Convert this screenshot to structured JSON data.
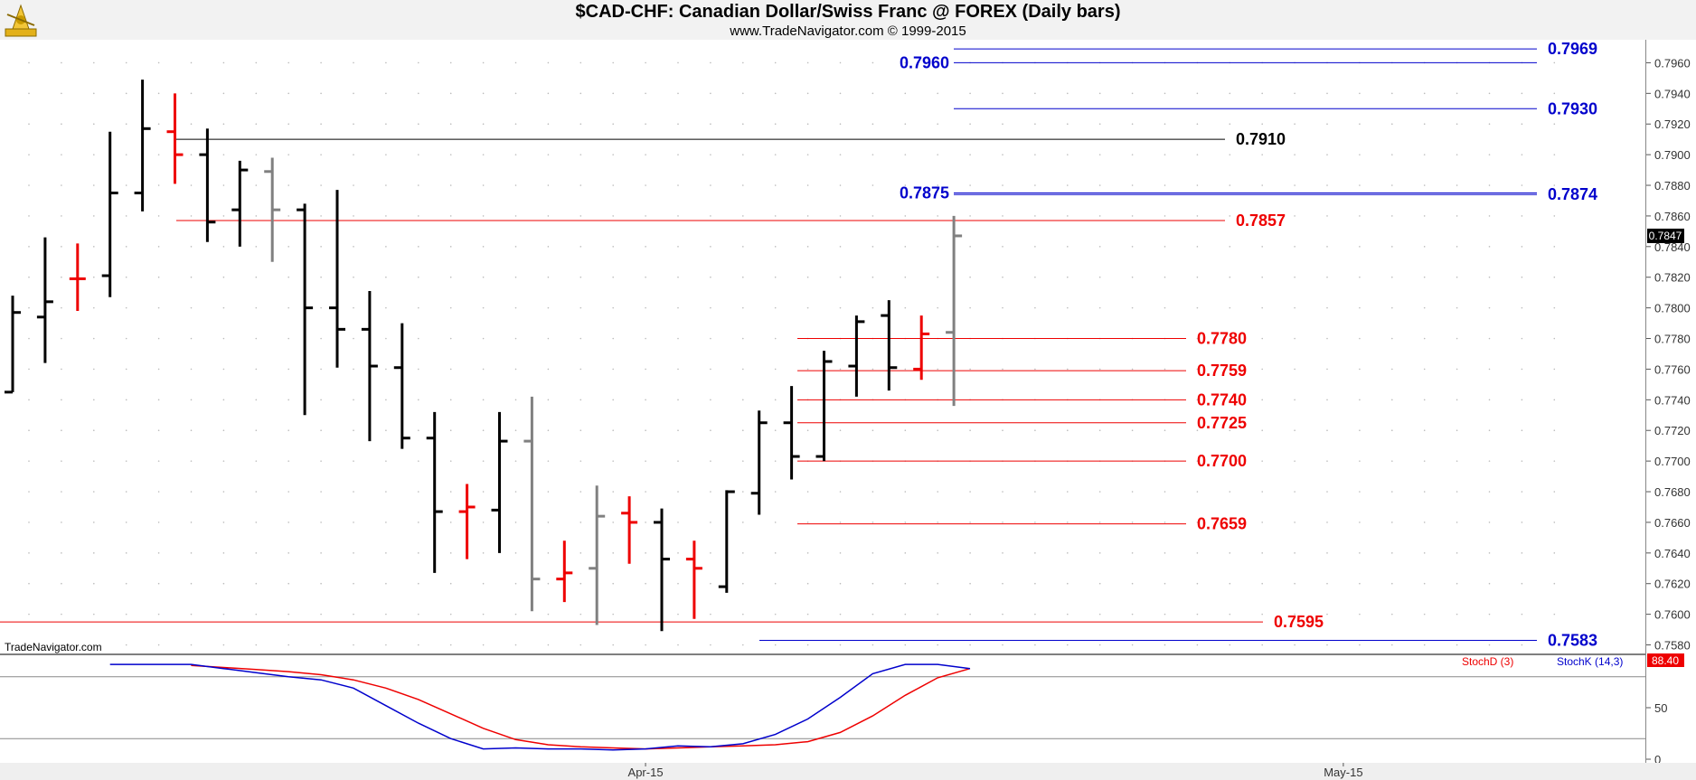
{
  "header": {
    "title": "$CAD-CHF:  Canadian Dollar/Swiss Franc @ FOREX  (Daily bars)",
    "subtitle": "www.TradeNavigator.com © 1999-2015",
    "watermark": "TradeNavigator.com"
  },
  "colors": {
    "black": "#000000",
    "red": "#ee0000",
    "gray": "#808080",
    "blue": "#0000cc",
    "stochD": "#ee0000",
    "stochK": "#0000cc"
  },
  "chart_data": [
    {
      "type": "ohlc",
      "title": "$CAD-CHF:  Canadian Dollar/Swiss Franc @ FOREX  (Daily bars)",
      "ylim": [
        0.7575,
        0.7975
      ],
      "y_ticks": [
        0.758,
        0.76,
        0.762,
        0.764,
        0.766,
        0.768,
        0.77,
        0.772,
        0.774,
        0.776,
        0.778,
        0.78,
        0.782,
        0.784,
        0.786,
        0.788,
        0.79,
        0.792,
        0.794,
        0.796
      ],
      "y_tick_labels": [
        "0.7580",
        "0.7600",
        "0.7620",
        "0.7640",
        "0.7660",
        "0.7680",
        "0.7700",
        "0.7720",
        "0.7740",
        "0.7760",
        "0.7780",
        "0.7800",
        "0.7820",
        "0.7840",
        "0.7860",
        "0.7880",
        "0.7900",
        "0.7920",
        "0.7940",
        "0.7960"
      ],
      "x_labels": [
        {
          "label": "Apr-15",
          "bar": 19.5
        },
        {
          "label": "May-15",
          "bar": 41
        }
      ],
      "grid": "dotted",
      "last_price": "0.7847",
      "bars": [
        {
          "o": 0.7745,
          "h": 0.7808,
          "l": 0.7745,
          "c": 0.7797,
          "color": "black"
        },
        {
          "o": 0.7794,
          "h": 0.7846,
          "l": 0.7764,
          "c": 0.7804,
          "color": "black"
        },
        {
          "o": 0.7819,
          "h": 0.7842,
          "l": 0.7798,
          "c": 0.7819,
          "color": "red"
        },
        {
          "o": 0.7821,
          "h": 0.7915,
          "l": 0.7807,
          "c": 0.7875,
          "color": "black"
        },
        {
          "o": 0.7875,
          "h": 0.7949,
          "l": 0.7863,
          "c": 0.7917,
          "color": "black"
        },
        {
          "o": 0.7915,
          "h": 0.794,
          "l": 0.7881,
          "c": 0.79,
          "color": "red"
        },
        {
          "o": 0.79,
          "h": 0.7917,
          "l": 0.7843,
          "c": 0.7856,
          "color": "black"
        },
        {
          "o": 0.7864,
          "h": 0.7896,
          "l": 0.784,
          "c": 0.789,
          "color": "black"
        },
        {
          "o": 0.7889,
          "h": 0.7898,
          "l": 0.783,
          "c": 0.7864,
          "color": "gray"
        },
        {
          "o": 0.7864,
          "h": 0.7868,
          "l": 0.773,
          "c": 0.78,
          "color": "black"
        },
        {
          "o": 0.78,
          "h": 0.7877,
          "l": 0.7761,
          "c": 0.7786,
          "color": "black"
        },
        {
          "o": 0.7786,
          "h": 0.7811,
          "l": 0.7713,
          "c": 0.7762,
          "color": "black"
        },
        {
          "o": 0.7761,
          "h": 0.779,
          "l": 0.7708,
          "c": 0.7715,
          "color": "black"
        },
        {
          "o": 0.7715,
          "h": 0.7732,
          "l": 0.7627,
          "c": 0.7667,
          "color": "black"
        },
        {
          "o": 0.7667,
          "h": 0.7685,
          "l": 0.7636,
          "c": 0.767,
          "color": "red"
        },
        {
          "o": 0.7668,
          "h": 0.7732,
          "l": 0.764,
          "c": 0.7713,
          "color": "black"
        },
        {
          "o": 0.7713,
          "h": 0.7742,
          "l": 0.7602,
          "c": 0.7623,
          "color": "gray"
        },
        {
          "o": 0.7623,
          "h": 0.7648,
          "l": 0.7608,
          "c": 0.7627,
          "color": "red"
        },
        {
          "o": 0.763,
          "h": 0.7684,
          "l": 0.7593,
          "c": 0.7664,
          "color": "gray"
        },
        {
          "o": 0.7666,
          "h": 0.7677,
          "l": 0.7633,
          "c": 0.766,
          "color": "red"
        },
        {
          "o": 0.766,
          "h": 0.7669,
          "l": 0.7589,
          "c": 0.7636,
          "color": "black"
        },
        {
          "o": 0.7636,
          "h": 0.7648,
          "l": 0.7597,
          "c": 0.763,
          "color": "red"
        },
        {
          "o": 0.7618,
          "h": 0.7681,
          "l": 0.7614,
          "c": 0.768,
          "color": "black"
        },
        {
          "o": 0.7679,
          "h": 0.7733,
          "l": 0.7665,
          "c": 0.7725,
          "color": "black"
        },
        {
          "o": 0.7725,
          "h": 0.7749,
          "l": 0.7688,
          "c": 0.7703,
          "color": "black"
        },
        {
          "o": 0.7703,
          "h": 0.7772,
          "l": 0.77,
          "c": 0.7765,
          "color": "black"
        },
        {
          "o": 0.7762,
          "h": 0.7795,
          "l": 0.7742,
          "c": 0.7791,
          "color": "black"
        },
        {
          "o": 0.7795,
          "h": 0.7805,
          "l": 0.7746,
          "c": 0.7761,
          "color": "black"
        },
        {
          "o": 0.776,
          "h": 0.7795,
          "l": 0.7753,
          "c": 0.7783,
          "color": "red"
        },
        {
          "o": 0.7784,
          "h": 0.786,
          "l": 0.7736,
          "c": 0.7847,
          "color": "gray"
        }
      ],
      "levels": [
        {
          "value": 0.7969,
          "label": "0.7969",
          "color": "blue"
        },
        {
          "value": 0.796,
          "label": "0.7960",
          "color": "blue"
        },
        {
          "value": 0.793,
          "label": "0.7930",
          "color": "blue"
        },
        {
          "value": 0.791,
          "label": "0.7910",
          "color": "black"
        },
        {
          "value": 0.7875,
          "label": "0.7875",
          "color": "blue"
        },
        {
          "value": 0.7874,
          "label": "0.7874",
          "color": "blue"
        },
        {
          "value": 0.7857,
          "label": "0.7857",
          "color": "red"
        },
        {
          "value": 0.778,
          "label": "0.7780",
          "color": "red"
        },
        {
          "value": 0.7759,
          "label": "0.7759",
          "color": "red"
        },
        {
          "value": 0.774,
          "label": "0.7740",
          "color": "red"
        },
        {
          "value": 0.7725,
          "label": "0.7725",
          "color": "red"
        },
        {
          "value": 0.77,
          "label": "0.7700",
          "color": "red"
        },
        {
          "value": 0.7659,
          "label": "0.7659",
          "color": "red"
        },
        {
          "value": 0.7595,
          "label": "0.7595",
          "color": "red"
        },
        {
          "value": 0.7583,
          "label": "0.7583",
          "color": "blue"
        }
      ]
    },
    {
      "type": "line",
      "ylim": [
        0,
        100
      ],
      "y_ticks": [
        0,
        50
      ],
      "y_tick_labels": [
        "0",
        "50"
      ],
      "reference_lines": [
        20,
        80
      ],
      "legend": [
        "StochD (3)",
        "StochK (14,3)"
      ],
      "last_value": "88.40",
      "series": [
        {
          "name": "StochD (3)",
          "color": "stochD",
          "x": [
            5.5,
            6.5,
            7.5,
            8.5,
            9.5,
            10.5,
            11.5,
            12.5,
            13.5,
            14.5,
            15.5,
            16.5,
            17.5,
            18.5,
            19.5,
            20.5,
            21.5,
            22.5,
            23.5,
            24.5,
            25.5,
            26.5,
            27.5,
            28.5,
            29.5
          ],
          "values": [
            91,
            89,
            87,
            85,
            82,
            77,
            69,
            58,
            44,
            30,
            19,
            14,
            12,
            11,
            10,
            11,
            12,
            13,
            14,
            17,
            26,
            42,
            62,
            79,
            88
          ]
        },
        {
          "name": "StochK (14,3)",
          "color": "stochK",
          "x": [
            3,
            3.4,
            5.5,
            6.5,
            7.5,
            8.5,
            9.5,
            10.5,
            11.5,
            12.5,
            13.5,
            14.5,
            15.5,
            16.5,
            17.5,
            18.5,
            19.5,
            20.5,
            21.5,
            22.5,
            23.5,
            24.5,
            25.5,
            26.5,
            27.5,
            28.5,
            29.5
          ],
          "values": [
            92,
            92,
            92,
            88,
            84,
            80,
            77,
            69,
            52,
            35,
            20,
            10,
            11,
            10,
            10,
            9,
            10,
            13,
            12,
            15,
            24,
            39,
            60,
            83,
            92,
            92,
            88
          ]
        }
      ]
    }
  ]
}
